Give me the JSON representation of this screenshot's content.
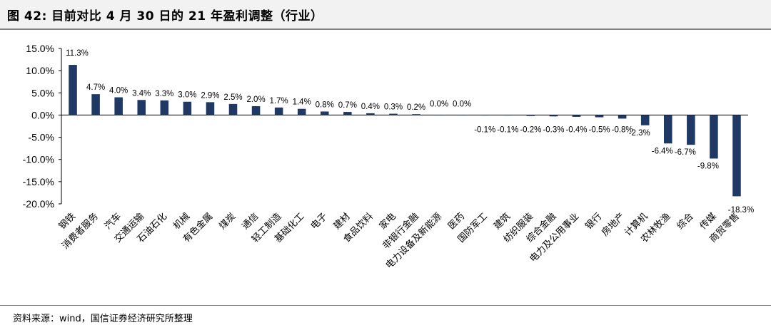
{
  "figure": {
    "title": "图 42:  目前对比 4 月 30 日的 21 年盈利调整（行业）",
    "source": "资料来源：wind，国信证券经济研究所整理"
  },
  "chart_data": {
    "type": "bar",
    "categories": [
      "钢铁",
      "消费者服务",
      "汽车",
      "交通运输",
      "石油石化",
      "机械",
      "有色金属",
      "煤炭",
      "通信",
      "轻工制造",
      "基础化工",
      "电子",
      "建材",
      "食品饮料",
      "家电",
      "非银行金融",
      "电力设备及新能源",
      "医药",
      "国防军工",
      "建筑",
      "纺织服装",
      "综合金融",
      "电力及公用事业",
      "银行",
      "房地产",
      "计算机",
      "农林牧渔",
      "综合",
      "传媒",
      "商贸零售"
    ],
    "values": [
      11.3,
      4.7,
      4.0,
      3.4,
      3.3,
      3.0,
      2.9,
      2.5,
      2.0,
      1.7,
      1.4,
      0.8,
      0.7,
      0.4,
      0.3,
      0.2,
      0.0,
      0.0,
      -0.1,
      -0.1,
      -0.2,
      -0.3,
      -0.4,
      -0.5,
      -0.8,
      -2.3,
      -6.4,
      -6.7,
      -9.8,
      -18.3
    ],
    "data_labels": [
      "11.3%",
      "4.7%",
      "4.0%",
      "3.4%",
      "3.3%",
      "3.0%",
      "2.9%",
      "2.5%",
      "2.0%",
      "1.7%",
      "1.4%",
      "0.8%",
      "0.7%",
      "0.4%",
      "0.3%",
      "0.2%",
      "0.0%",
      "0.0%",
      "-0.1%",
      "-0.1%",
      "-0.2%",
      "-0.3%",
      "-0.4%",
      "-0.5%",
      "-0.8%",
      "-2.3%",
      "-6.4%",
      "-6.7%",
      "-9.8%",
      "-18.3%"
    ],
    "ylim": [
      -20,
      15
    ],
    "yticks": [
      "15.0%",
      "10.0%",
      "5.0%",
      "0.0%",
      "-5.0%",
      "-10.0%",
      "-15.0%",
      "-20.0%"
    ],
    "bar_color": "#1f3864",
    "grid": false,
    "legend": "none"
  }
}
